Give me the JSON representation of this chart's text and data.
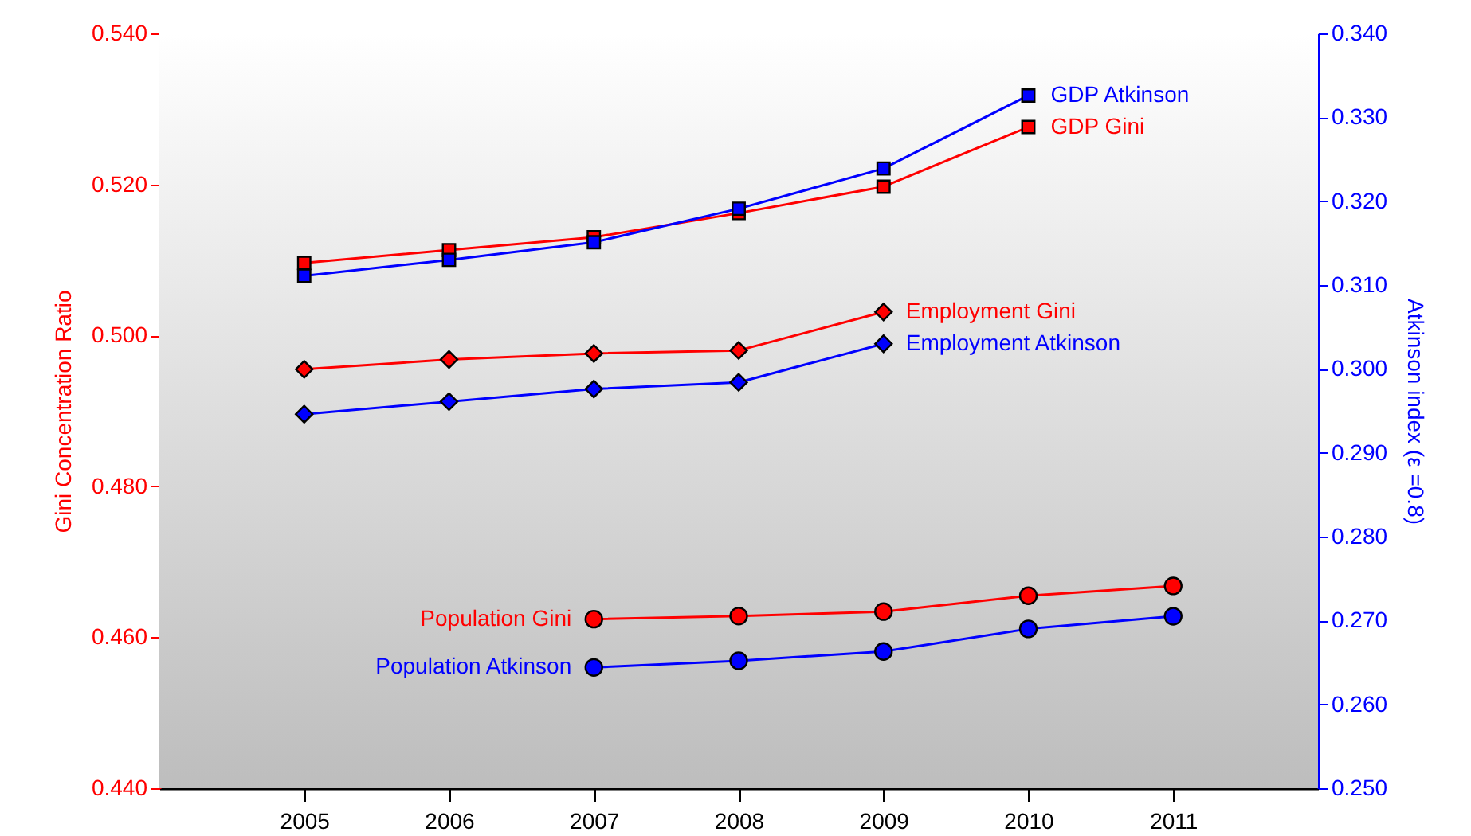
{
  "chart_data": {
    "type": "line",
    "xlabel": null,
    "ylabel": "Gini Concentration Ratio",
    "y2label": "Atkinson index (ε =0.8)",
    "xlim": [
      2004,
      2012
    ],
    "xticks": [
      2005,
      2006,
      2007,
      2008,
      2009,
      2010,
      2011
    ],
    "ylim": [
      0.44,
      0.54
    ],
    "yticks": [
      {
        "value": 0.44,
        "label": "0.440"
      },
      {
        "value": 0.46,
        "label": "0.460"
      },
      {
        "value": 0.48,
        "label": "0.480"
      },
      {
        "value": 0.5,
        "label": "0.500"
      },
      {
        "value": 0.52,
        "label": "0.520"
      },
      {
        "value": 0.54,
        "label": "0.540"
      }
    ],
    "y2lim": [
      0.25,
      0.34
    ],
    "y2ticks": [
      {
        "value": 0.25,
        "label": "0.250"
      },
      {
        "value": 0.26,
        "label": "0.260"
      },
      {
        "value": 0.27,
        "label": "0.270"
      },
      {
        "value": 0.28,
        "label": "0.280"
      },
      {
        "value": 0.29,
        "label": "0.290"
      },
      {
        "value": 0.3,
        "label": "0.300"
      },
      {
        "value": 0.31,
        "label": "0.310"
      },
      {
        "value": 0.32,
        "label": "0.320"
      },
      {
        "value": 0.33,
        "label": "0.330"
      },
      {
        "value": 0.34,
        "label": "0.340"
      }
    ],
    "grid": false,
    "legend": false,
    "line_style": "solid",
    "series": [
      {
        "name": "GDP Gini",
        "color": "#ff0000",
        "axis": "y",
        "marker": "square",
        "x": [
          2005,
          2006,
          2007,
          2008,
          2009,
          2010
        ],
        "values": [
          0.5096,
          0.5113,
          0.513,
          0.5162,
          0.5197,
          0.5276
        ]
      },
      {
        "name": "Employment Gini",
        "color": "#ff0000",
        "axis": "y",
        "marker": "diamond",
        "x": [
          2005,
          2006,
          2007,
          2008,
          2009
        ],
        "values": [
          0.4955,
          0.4968,
          0.4976,
          0.498,
          0.5031
        ]
      },
      {
        "name": "Population Gini",
        "color": "#ff0000",
        "axis": "y",
        "marker": "circle",
        "x": [
          2007,
          2008,
          2009,
          2010,
          2011
        ],
        "values": [
          0.4624,
          0.4628,
          0.4634,
          0.4655,
          0.4668
        ]
      },
      {
        "name": "GDP Atkinson",
        "color": "#0000ff",
        "axis": "y2",
        "marker": "square",
        "x": [
          2005,
          2006,
          2007,
          2008,
          2009,
          2010
        ],
        "values": [
          0.3111,
          0.313,
          0.3151,
          0.3191,
          0.3239,
          0.3326
        ]
      },
      {
        "name": "Employment Atkinson",
        "color": "#0000ff",
        "axis": "y2",
        "marker": "diamond",
        "x": [
          2005,
          2006,
          2007,
          2008,
          2009
        ],
        "values": [
          0.2946,
          0.2961,
          0.2976,
          0.2984,
          0.303
        ]
      },
      {
        "name": "Population Atkinson",
        "color": "#0000ff",
        "axis": "y2",
        "marker": "circle",
        "x": [
          2007,
          2008,
          2009,
          2010,
          2011
        ],
        "values": [
          0.2644,
          0.2652,
          0.2663,
          0.269,
          0.2705
        ]
      }
    ]
  }
}
